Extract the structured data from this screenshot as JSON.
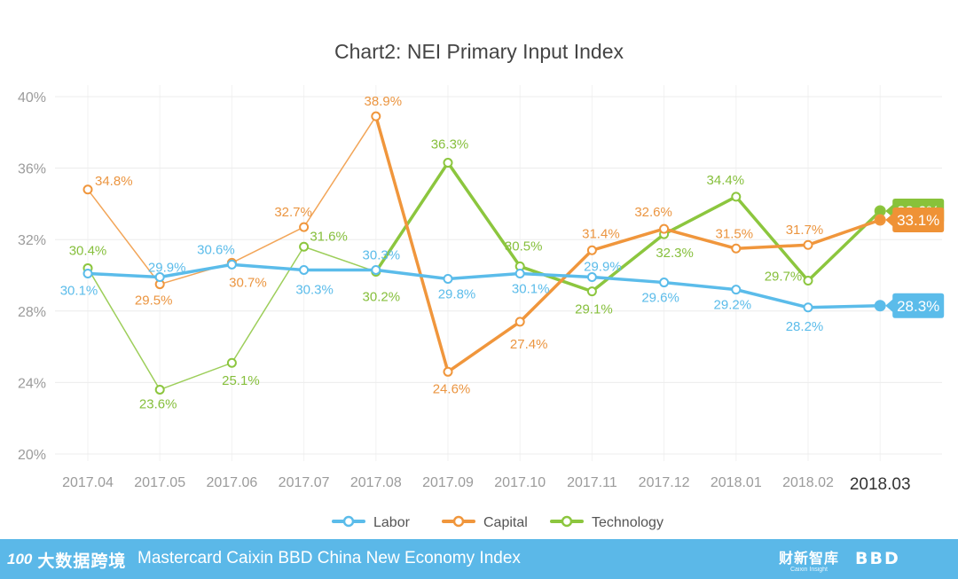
{
  "chart_data": {
    "type": "line",
    "title": "Chart2: NEI Primary Input Index",
    "categories": [
      "2017.04",
      "2017.05",
      "2017.06",
      "2017.07",
      "2017.08",
      "2017.09",
      "2017.10",
      "2017.11",
      "2017.12",
      "2018.01",
      "2018.02",
      "2018.03"
    ],
    "y_ticks": [
      "20%",
      "24%",
      "28%",
      "32%",
      "36%",
      "40%"
    ],
    "ylim": [
      20,
      40
    ],
    "grid": true,
    "legend_position": "bottom",
    "series": [
      {
        "name": "Labor",
        "color": "#5bbcea",
        "values": [
          30.1,
          29.9,
          30.6,
          30.3,
          30.3,
          29.8,
          30.1,
          29.9,
          29.6,
          29.2,
          28.2,
          28.3
        ],
        "labels": [
          "30.1%",
          "29.9%",
          "30.6%",
          "30.3%",
          "30.3%",
          "29.8%",
          "30.1%",
          "29.9%",
          "29.6%",
          "29.2%",
          "28.2%",
          "28.3%"
        ]
      },
      {
        "name": "Capital",
        "color": "#f0963c",
        "values": [
          34.8,
          29.5,
          30.7,
          32.7,
          38.9,
          24.6,
          27.4,
          31.4,
          32.6,
          31.5,
          31.7,
          33.1
        ],
        "labels": [
          "34.8%",
          "29.5%",
          "30.7%",
          "32.7%",
          "38.9%",
          "24.6%",
          "27.4%",
          "31.4%",
          "32.6%",
          "31.5%",
          "31.7%",
          "33.1%"
        ]
      },
      {
        "name": "Technology",
        "color": "#8cc63e",
        "values": [
          30.4,
          23.6,
          25.1,
          31.6,
          30.2,
          36.3,
          30.5,
          29.1,
          32.3,
          34.4,
          29.7,
          33.6
        ],
        "labels": [
          "30.4%",
          "23.6%",
          "25.1%",
          "31.6%",
          "30.2%",
          "36.3%",
          "30.5%",
          "29.1%",
          "32.3%",
          "34.4%",
          "29.7%",
          "33.6%"
        ]
      }
    ]
  },
  "footer": {
    "title": "Mastercard Caixin BBD China New Economy Index",
    "logo_left_num": "100",
    "logo_left_text": "大数据跨境",
    "logo_right1_text": "财新智库",
    "logo_right1_sub": "Caixin Insight",
    "logo_right2_text": "BBD"
  }
}
